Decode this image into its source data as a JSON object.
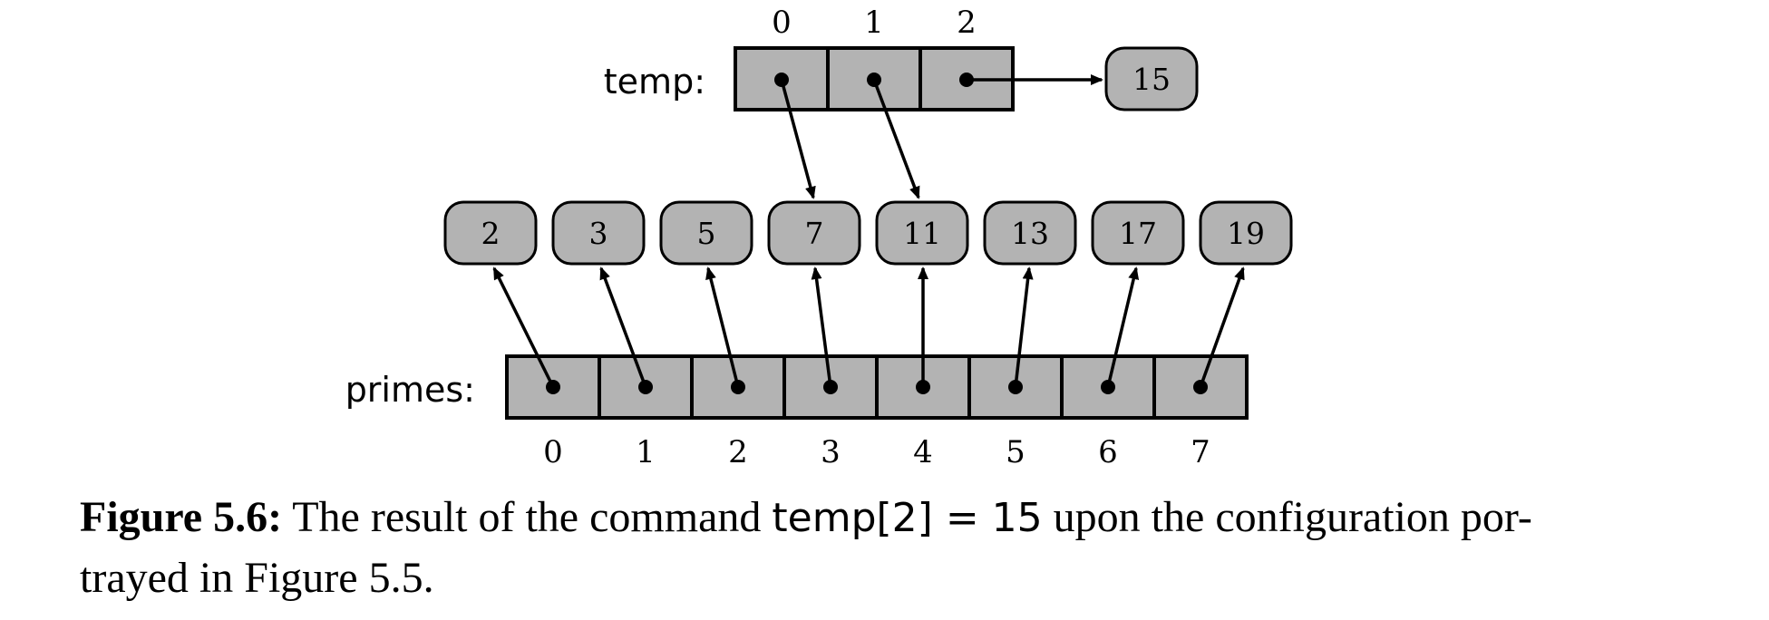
{
  "temp": {
    "label": "temp:",
    "indices": [
      "0",
      "1",
      "2"
    ]
  },
  "primes": {
    "label": "primes:",
    "indices": [
      "0",
      "1",
      "2",
      "3",
      "4",
      "5",
      "6",
      "7"
    ],
    "values": [
      "2",
      "3",
      "5",
      "7",
      "11",
      "13",
      "17",
      "19"
    ]
  },
  "new_value": "15",
  "caption": {
    "label": "Figure 5.6:",
    "text_before": " The result of the command ",
    "code": "temp[2] = 15",
    "text_after": " upon the configuration por-",
    "line2": "trayed in Figure 5.5."
  },
  "colors": {
    "cell_fill": "#b3b3b3",
    "stroke": "#000000"
  }
}
